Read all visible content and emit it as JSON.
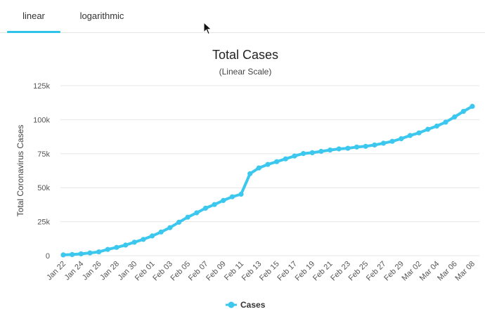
{
  "tabs": [
    {
      "label": "linear",
      "active": true
    },
    {
      "label": "logarithmic",
      "active": false
    }
  ],
  "colors": {
    "series": "#3cc8ee",
    "grid": "#e6e6e6",
    "accent": "#2cc4ea"
  },
  "chart_data": {
    "type": "line",
    "title": "Total Cases",
    "subtitle": "(Linear Scale)",
    "ylabel": "Total Coronavirus Cases",
    "xlabel": "",
    "ylim": [
      0,
      125000
    ],
    "yticks": [
      0,
      25000,
      50000,
      75000,
      100000,
      125000
    ],
    "ytick_labels": [
      "0",
      "25k",
      "50k",
      "75k",
      "100k",
      "125k"
    ],
    "grid": true,
    "legend": "bottom-center",
    "x_tick_labels": [
      "Jan 22",
      "Jan 24",
      "Jan 26",
      "Jan 28",
      "Jan 30",
      "Feb 01",
      "Feb 03",
      "Feb 05",
      "Feb 07",
      "Feb 09",
      "Feb 11",
      "Feb 13",
      "Feb 15",
      "Feb 17",
      "Feb 19",
      "Feb 21",
      "Feb 23",
      "Feb 25",
      "Feb 27",
      "Feb 29",
      "Mar 02",
      "Mar 04",
      "Mar 06",
      "Mar 08"
    ],
    "series": [
      {
        "name": "Cases",
        "x": [
          "Jan 22",
          "Jan 23",
          "Jan 24",
          "Jan 25",
          "Jan 26",
          "Jan 27",
          "Jan 28",
          "Jan 29",
          "Jan 30",
          "Jan 31",
          "Feb 01",
          "Feb 02",
          "Feb 03",
          "Feb 04",
          "Feb 05",
          "Feb 06",
          "Feb 07",
          "Feb 08",
          "Feb 09",
          "Feb 10",
          "Feb 11",
          "Feb 12",
          "Feb 13",
          "Feb 14",
          "Feb 15",
          "Feb 16",
          "Feb 17",
          "Feb 18",
          "Feb 19",
          "Feb 20",
          "Feb 21",
          "Feb 22",
          "Feb 23",
          "Feb 24",
          "Feb 25",
          "Feb 26",
          "Feb 27",
          "Feb 28",
          "Feb 29",
          "Mar 01",
          "Mar 02",
          "Mar 03",
          "Mar 04",
          "Mar 05",
          "Mar 06",
          "Mar 07",
          "Mar 08"
        ],
        "values": [
          580,
          845,
          1320,
          2010,
          2800,
          4600,
          6100,
          7800,
          9900,
          12000,
          14500,
          17400,
          20600,
          24600,
          28300,
          31500,
          34900,
          37600,
          40600,
          43300,
          45200,
          60300,
          64500,
          67100,
          69100,
          71200,
          73300,
          75100,
          75700,
          76700,
          77700,
          78500,
          79000,
          79900,
          80400,
          81400,
          82700,
          84100,
          86000,
          88400,
          90300,
          92900,
          95300,
          98200,
          102000,
          106100,
          109800
        ]
      }
    ]
  }
}
